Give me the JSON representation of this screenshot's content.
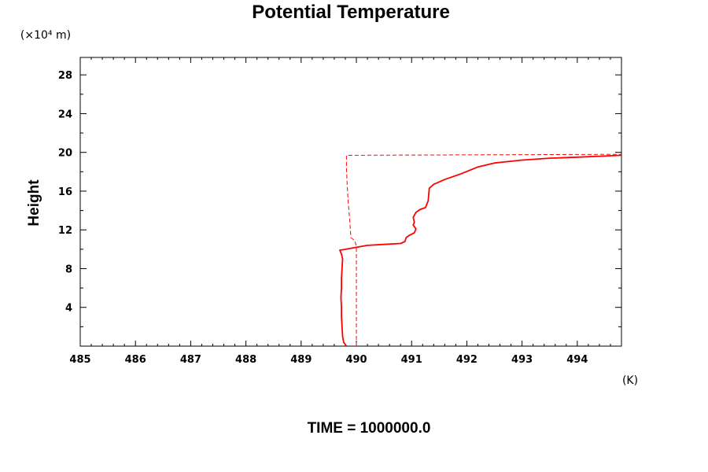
{
  "chart_data": {
    "type": "line",
    "title": "Potential Temperature",
    "ylabel": "Height",
    "y_units": "(×10⁴ m)",
    "x_units": "(K)",
    "footer": "TIME = 1000000.0",
    "xlim": [
      485,
      494.8
    ],
    "ylim": [
      0,
      29.8
    ],
    "x_ticks": [
      "485",
      "486",
      "487",
      "488",
      "489",
      "490",
      "491",
      "492",
      "493",
      "494"
    ],
    "y_ticks": [
      "4",
      "8",
      "12",
      "16",
      "20",
      "24",
      "28"
    ],
    "grid": false,
    "colors": {
      "series": "#ff0000",
      "axis": "#000000"
    },
    "series": [
      {
        "style": "solid",
        "points": [
          [
            489.82,
            0.0
          ],
          [
            489.77,
            0.4
          ],
          [
            489.75,
            1.0
          ],
          [
            489.74,
            2.0
          ],
          [
            489.73,
            3.0
          ],
          [
            489.73,
            4.0
          ],
          [
            489.72,
            5.0
          ],
          [
            489.73,
            6.0
          ],
          [
            489.73,
            7.0
          ],
          [
            489.74,
            8.0
          ],
          [
            489.75,
            9.0
          ],
          [
            489.73,
            9.5
          ],
          [
            489.7,
            9.9
          ],
          [
            489.85,
            10.05
          ],
          [
            490.0,
            10.2
          ],
          [
            490.2,
            10.4
          ],
          [
            490.5,
            10.5
          ],
          [
            490.8,
            10.6
          ],
          [
            490.88,
            10.8
          ],
          [
            490.9,
            11.2
          ],
          [
            490.95,
            11.4
          ],
          [
            491.05,
            11.7
          ],
          [
            491.08,
            12.1
          ],
          [
            491.03,
            12.5
          ],
          [
            491.05,
            12.8
          ],
          [
            491.03,
            13.3
          ],
          [
            491.08,
            13.8
          ],
          [
            491.15,
            14.1
          ],
          [
            491.25,
            14.3
          ],
          [
            491.3,
            15.0
          ],
          [
            491.32,
            16.3
          ],
          [
            491.4,
            16.7
          ],
          [
            491.6,
            17.2
          ],
          [
            491.9,
            17.8
          ],
          [
            492.2,
            18.5
          ],
          [
            492.5,
            18.9
          ],
          [
            493.0,
            19.2
          ],
          [
            493.5,
            19.4
          ],
          [
            494.0,
            19.5
          ],
          [
            494.4,
            19.6
          ],
          [
            494.8,
            19.7
          ]
        ]
      },
      {
        "style": "dashed",
        "points": [
          [
            490.0,
            0.0
          ],
          [
            490.0,
            10.3
          ],
          [
            489.97,
            10.9
          ],
          [
            489.9,
            11.2
          ],
          [
            489.88,
            13.0
          ],
          [
            489.85,
            15.0
          ],
          [
            489.83,
            17.0
          ],
          [
            489.82,
            18.5
          ],
          [
            489.82,
            19.7
          ],
          [
            494.8,
            19.8
          ]
        ]
      }
    ]
  }
}
